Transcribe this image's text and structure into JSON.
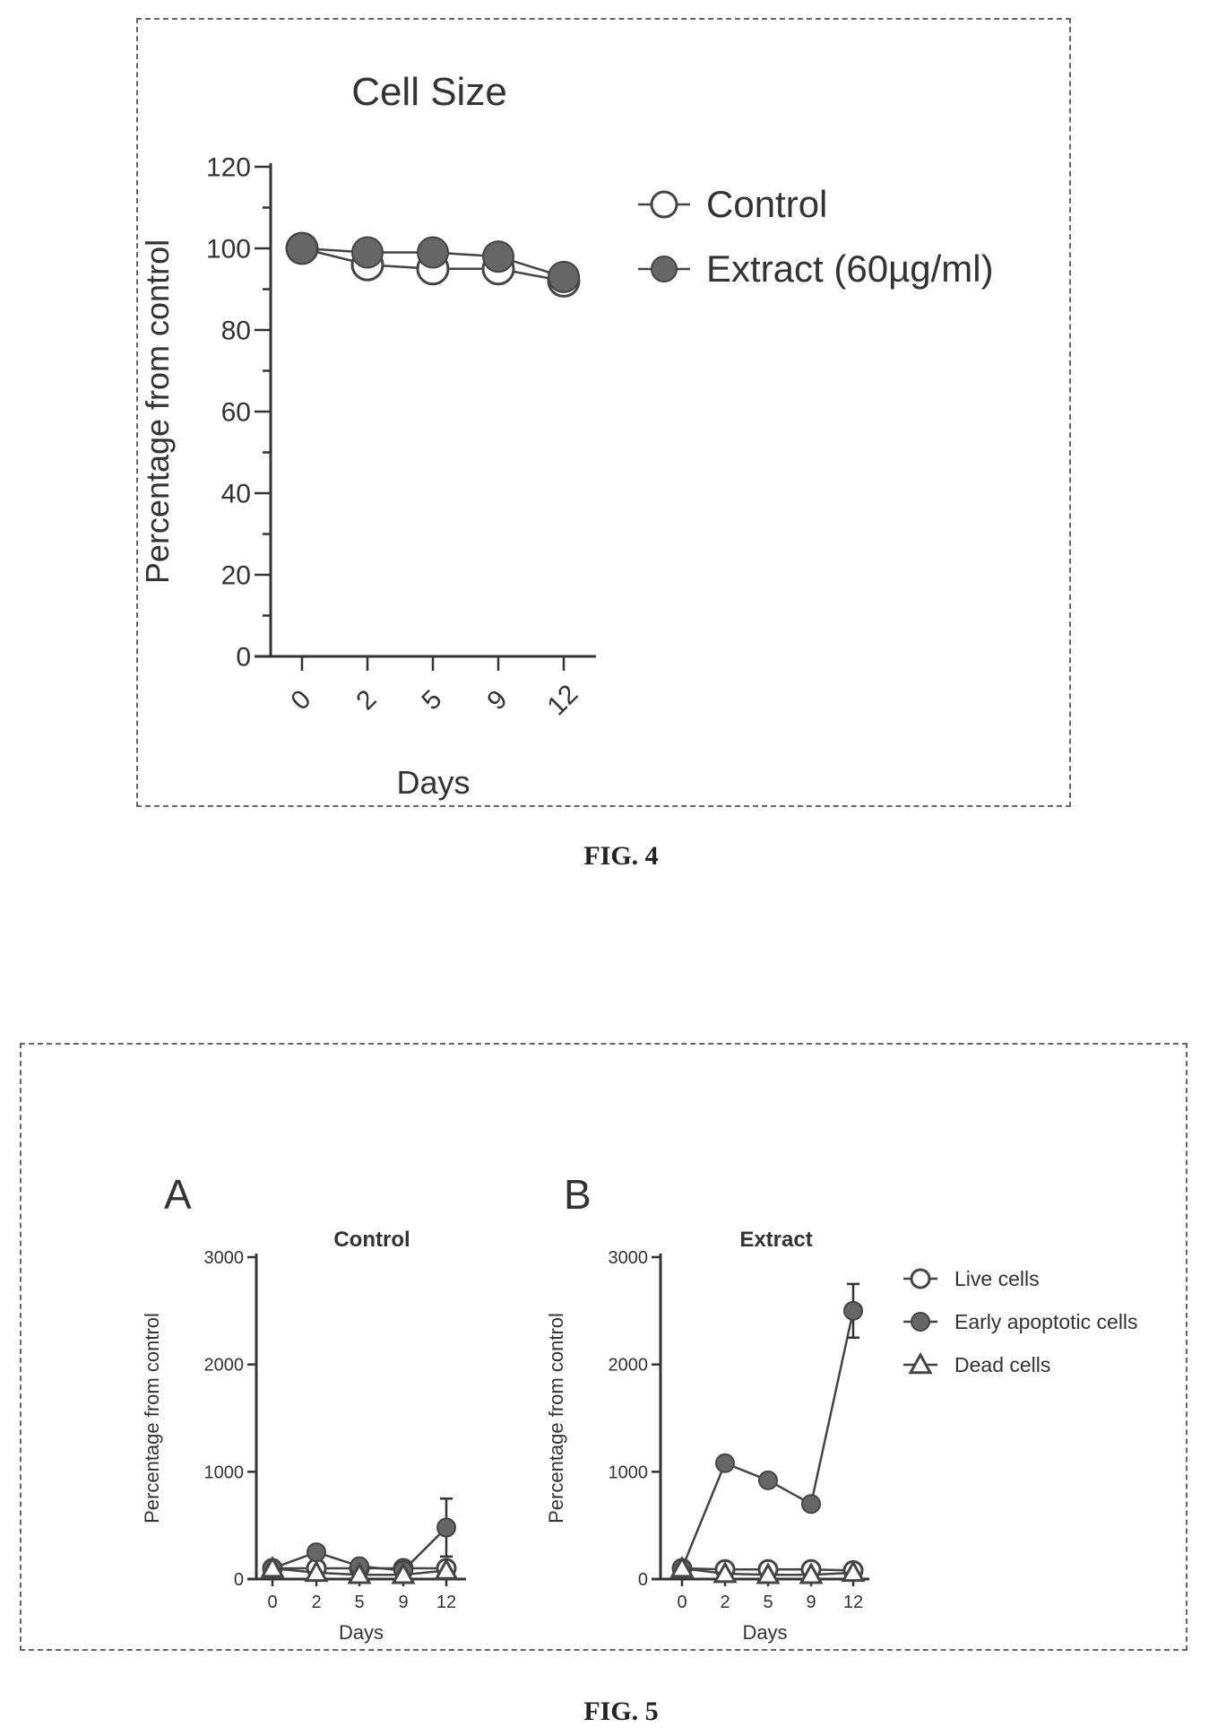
{
  "fig4": {
    "caption": "FIG. 4",
    "chart_data": {
      "type": "line",
      "title": "Cell Size",
      "xlabel": "Days",
      "ylabel": "Percentage from control",
      "categories": [
        "0",
        "2",
        "5",
        "9",
        "12"
      ],
      "yticks": [
        0,
        20,
        40,
        60,
        80,
        100,
        120
      ],
      "ylim": [
        0,
        120
      ],
      "legend_position": "right",
      "series": [
        {
          "name": "Control",
          "marker": "open-circle",
          "values": [
            100,
            96,
            95,
            95,
            92
          ],
          "errors": [
            0,
            0,
            0,
            0,
            0
          ]
        },
        {
          "name": "Extract (60µg/ml)",
          "marker": "filled-circle",
          "values": [
            100,
            99,
            99,
            98,
            93
          ],
          "errors": [
            0,
            0,
            3,
            0,
            0
          ]
        }
      ]
    }
  },
  "fig5": {
    "caption": "FIG. 5",
    "legend": [
      {
        "name": "Live cells",
        "marker": "open-circle"
      },
      {
        "name": "Early apoptotic cells",
        "marker": "filled-circle"
      },
      {
        "name": "Dead cells",
        "marker": "open-triangle"
      }
    ],
    "chart_data": [
      {
        "type": "line",
        "panel": "A",
        "title": "Control",
        "xlabel": "Days",
        "ylabel": "Percentage from control",
        "categories": [
          "0",
          "2",
          "5",
          "9",
          "12"
        ],
        "yticks": [
          0,
          1000,
          2000,
          3000
        ],
        "ylim": [
          0,
          3000
        ],
        "series": [
          {
            "name": "Live cells",
            "values": [
              100,
              100,
              100,
              100,
              100
            ],
            "errors": [
              0,
              0,
              0,
              0,
              0
            ]
          },
          {
            "name": "Early apoptotic cells",
            "values": [
              100,
              250,
              120,
              80,
              480
            ],
            "errors": [
              0,
              0,
              0,
              0,
              270
            ]
          },
          {
            "name": "Dead cells",
            "values": [
              100,
              60,
              40,
              40,
              80
            ],
            "errors": [
              0,
              0,
              0,
              0,
              0
            ]
          }
        ]
      },
      {
        "type": "line",
        "panel": "B",
        "title": "Extract",
        "xlabel": "Days",
        "ylabel": "Percentage from control",
        "categories": [
          "0",
          "2",
          "5",
          "9",
          "12"
        ],
        "yticks": [
          0,
          1000,
          2000,
          3000
        ],
        "ylim": [
          0,
          3000
        ],
        "series": [
          {
            "name": "Live cells",
            "values": [
              100,
              90,
              90,
              90,
              80
            ],
            "errors": [
              0,
              0,
              0,
              0,
              0
            ]
          },
          {
            "name": "Early apoptotic cells",
            "values": [
              100,
              1080,
              920,
              700,
              2500
            ],
            "errors": [
              0,
              0,
              0,
              0,
              250
            ]
          },
          {
            "name": "Dead cells",
            "values": [
              100,
              50,
              40,
              40,
              60
            ],
            "errors": [
              0,
              0,
              0,
              0,
              0
            ]
          }
        ]
      }
    ]
  }
}
